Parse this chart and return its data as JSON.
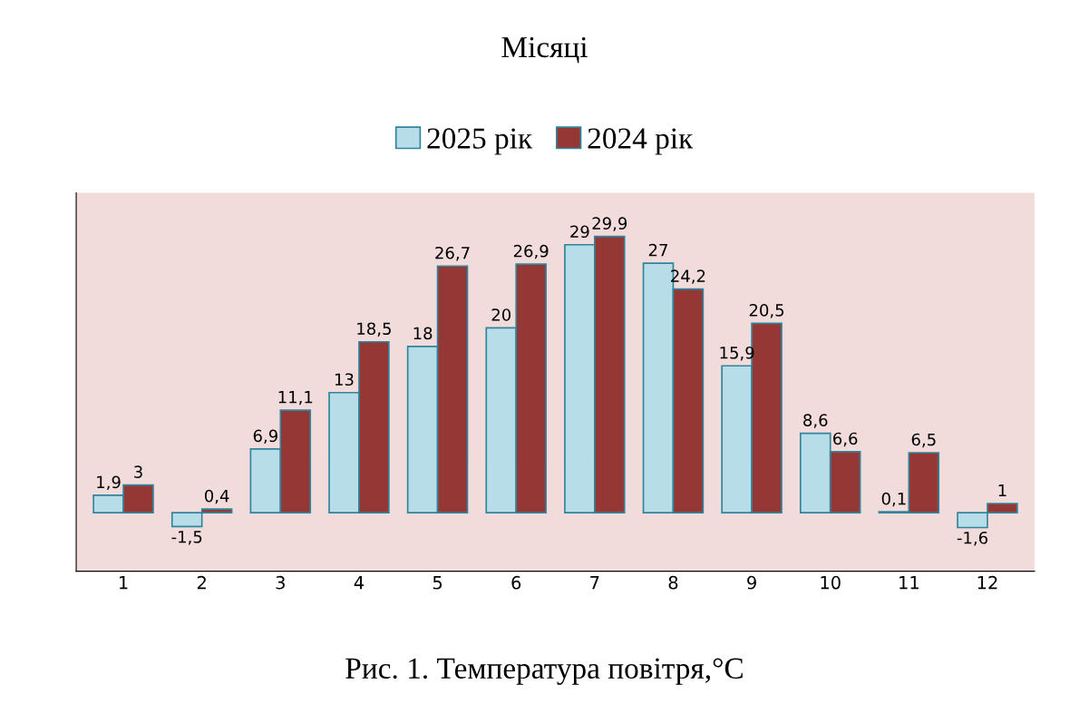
{
  "chart_data": {
    "type": "bar",
    "title": "Місяці",
    "categories": [
      "1",
      "2",
      "3",
      "4",
      "5",
      "6",
      "7",
      "8",
      "9",
      "10",
      "11",
      "12"
    ],
    "series": [
      {
        "name": "2025 рік",
        "color": "#b7dde8",
        "values": [
          1.9,
          -1.5,
          6.9,
          13,
          18,
          20,
          29,
          27,
          15.9,
          8.6,
          0.1,
          -1.6
        ],
        "value_labels": [
          "1,9",
          "-1,5",
          "6,9",
          "13",
          "18",
          "20",
          "29",
          "27",
          "15,9",
          "8,6",
          "0,1",
          "-1,6"
        ]
      },
      {
        "name": "2024 рік",
        "color": "#953735",
        "values": [
          3,
          0.4,
          11.1,
          18.5,
          26.7,
          26.9,
          29.9,
          24.2,
          20.5,
          6.6,
          6.5,
          1
        ],
        "value_labels": [
          "3",
          "0,4",
          "11,1",
          "18,5",
          "26,7",
          "26,9",
          "29,9",
          "24,2",
          "20,5",
          "6,6",
          "6,5",
          "1"
        ]
      }
    ],
    "legend": "top",
    "grid": false,
    "annotations": [
      "Рис. 1. Температура повітря,°С"
    ]
  }
}
